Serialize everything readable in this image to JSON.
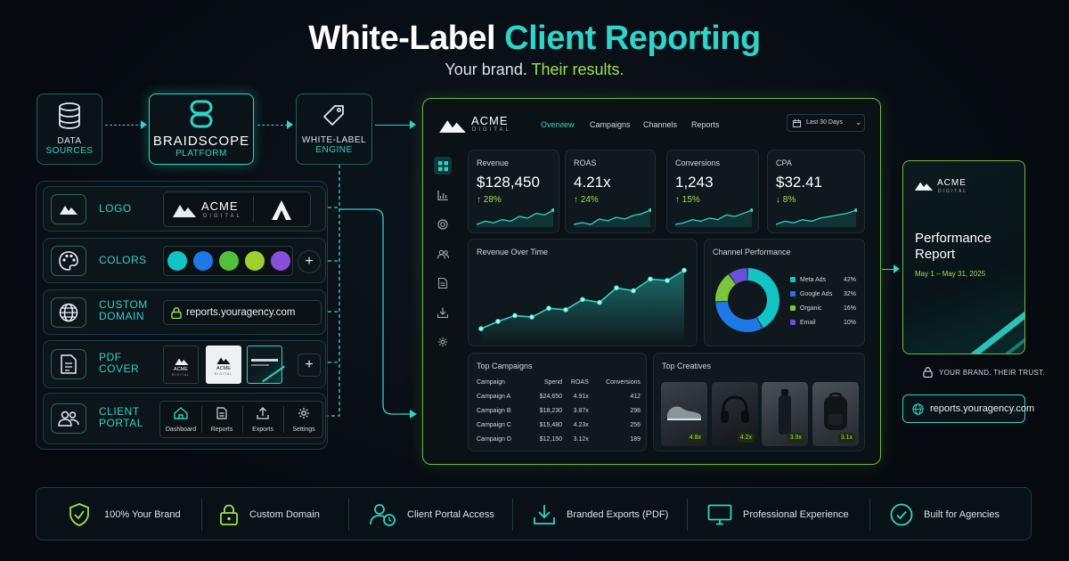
{
  "header": {
    "title_part1": "White-Label",
    "title_part2": "Client Reporting",
    "subtitle_part1": "Your brand.",
    "subtitle_part2": "Their results."
  },
  "pipeline": {
    "data_sources": {
      "line1": "DATA",
      "line2": "SOURCES",
      "icon": "database-icon"
    },
    "platform": {
      "line1": "BRAIDSCOPE",
      "line2": "PLATFORM",
      "icon": "braidscope-logo-icon"
    },
    "engine": {
      "line1": "WHITE-LABEL",
      "line2": "ENGINE",
      "icon": "tag-icon"
    }
  },
  "config": {
    "logo": {
      "label": "LOGO",
      "brand_name": "ACME",
      "brand_sub": "DIGITAL",
      "icon": "mountain-icon"
    },
    "colors": {
      "label": "COLORS",
      "swatches": [
        "#12c4c4",
        "#1e78e6",
        "#4fc23a",
        "#9fd02c",
        "#8a4fd8"
      ],
      "icon": "palette-icon"
    },
    "domain": {
      "label_line1": "CUSTOM",
      "label_line2": "DOMAIN",
      "url": "reports.youragency.com",
      "icon": "globe-icon"
    },
    "pdf": {
      "label_line1": "PDF",
      "label_line2": "COVER",
      "cover_brand": "ACME",
      "cover_sub": "DIGITAL",
      "icon": "document-icon"
    },
    "portal": {
      "label_line1": "CLIENT",
      "label_line2": "PORTAL",
      "icon": "users-icon",
      "items": [
        {
          "label": "Dashboard",
          "icon": "home-icon"
        },
        {
          "label": "Reports",
          "icon": "report-icon"
        },
        {
          "label": "Exports",
          "icon": "upload-icon"
        },
        {
          "label": "Settings",
          "icon": "gear-icon"
        }
      ]
    }
  },
  "dashboard": {
    "brand_name": "ACME",
    "brand_sub": "DIGITAL",
    "tabs": [
      "Overview",
      "Campaigns",
      "Channels",
      "Reports"
    ],
    "date_range": "Last 30 Days",
    "kpis": [
      {
        "label": "Revenue",
        "value": "$128,450",
        "change": "↑ 28%"
      },
      {
        "label": "ROAS",
        "value": "4.21x",
        "change": "↑ 24%"
      },
      {
        "label": "Conversions",
        "value": "1,243",
        "change": "↑ 15%"
      },
      {
        "label": "CPA",
        "value": "$32.41",
        "change": "↓ 8%"
      }
    ],
    "revenue_chart_title": "Revenue Over Time",
    "channel_title": "Channel Performance",
    "campaigns_title": "Top Campaigns",
    "campaign_headers": [
      "Campaign",
      "Spend",
      "ROAS",
      "Conversions"
    ],
    "campaigns": [
      [
        "Campaign A",
        "$24,650",
        "4.91x",
        "412"
      ],
      [
        "Campaign B",
        "$18,230",
        "3.87x",
        "298"
      ],
      [
        "Campaign C",
        "$15,480",
        "4.23x",
        "256"
      ],
      [
        "Campaign D",
        "$12,150",
        "3.12x",
        "189"
      ]
    ],
    "creatives_title": "Top Creatives",
    "creatives": [
      {
        "name": "sneaker",
        "roas": "4.8x"
      },
      {
        "name": "headphones",
        "roas": "4.2x"
      },
      {
        "name": "bottle",
        "roas": "3.9x"
      },
      {
        "name": "backpack",
        "roas": "3.1x"
      }
    ]
  },
  "chart_data": [
    {
      "type": "area",
      "title": "Revenue Over Time",
      "x": [
        1,
        2,
        3,
        4,
        5,
        6,
        7,
        8,
        9,
        10,
        11,
        12,
        13
      ],
      "values": [
        12,
        22,
        30,
        28,
        40,
        38,
        52,
        48,
        68,
        64,
        80,
        78,
        92
      ],
      "ylim": [
        0,
        100
      ],
      "grid": false
    },
    {
      "type": "pie",
      "title": "Channel Performance",
      "categories": [
        "Meta Ads",
        "Google Ads",
        "Organic",
        "Email"
      ],
      "values": [
        42,
        32,
        16,
        10
      ],
      "value_labels": [
        "42%",
        "32%",
        "16%",
        "10%"
      ],
      "colors": [
        "#12c4c4",
        "#1e78e6",
        "#7cc43a",
        "#6a4fd8"
      ],
      "legend": "right"
    },
    {
      "type": "line",
      "title": "Revenue sparkline",
      "values": [
        3,
        5,
        4,
        6,
        5,
        8,
        7,
        10,
        9,
        12
      ]
    },
    {
      "type": "line",
      "title": "ROAS sparkline",
      "values": [
        4,
        5,
        4,
        7,
        6,
        8,
        7,
        9,
        10,
        12
      ]
    },
    {
      "type": "line",
      "title": "Conversions sparkline",
      "values": [
        3,
        4,
        6,
        5,
        7,
        6,
        9,
        8,
        10,
        12
      ]
    },
    {
      "type": "line",
      "title": "CPA sparkline",
      "values": [
        3,
        5,
        4,
        6,
        5,
        7,
        8,
        9,
        10,
        12
      ]
    }
  ],
  "report": {
    "brand_name": "ACME",
    "brand_sub": "DIGITAL",
    "title_line1": "Performance",
    "title_line2": "Report",
    "date": "May 1 – May 31, 2025",
    "trust_text": "YOUR BRAND. THEIR TRUST.",
    "url": "reports.youragency.com"
  },
  "features": [
    {
      "label": "100% Your Brand",
      "icon": "shield-check-icon"
    },
    {
      "label": "Custom Domain",
      "icon": "lock-icon"
    },
    {
      "label": "Client Portal Access",
      "icon": "user-clock-icon"
    },
    {
      "label": "Branded Exports (PDF)",
      "icon": "download-icon"
    },
    {
      "label": "Professional Experience",
      "icon": "monitor-icon"
    },
    {
      "label": "Built for Agencies",
      "icon": "check-circle-icon"
    }
  ],
  "colors": {
    "teal": "#2fd3c8",
    "lime": "#9fe04a",
    "green_border": "#6fb83a"
  }
}
